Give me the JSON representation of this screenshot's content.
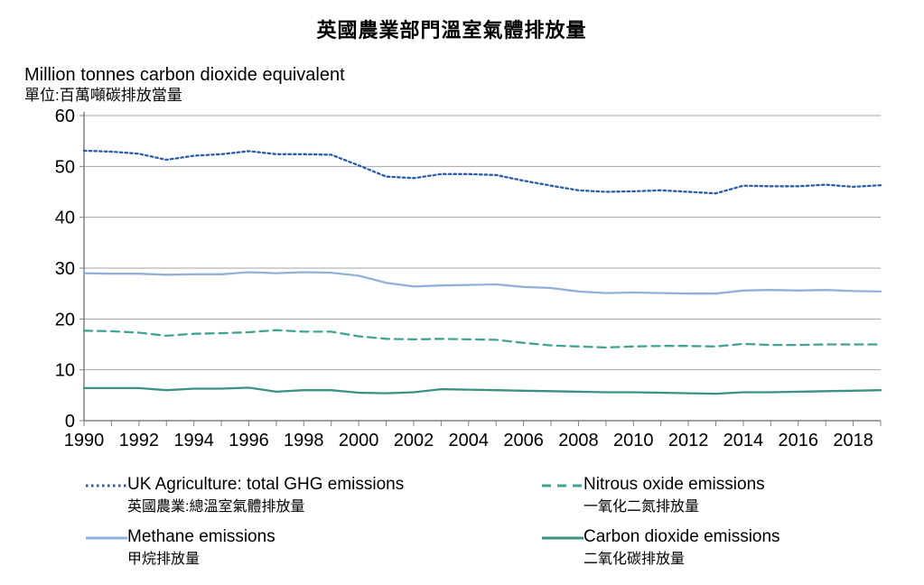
{
  "chart_data": {
    "type": "line",
    "title": "英國農業部門溫室氣體排放量",
    "unit_label_en": "Million tonnes carbon dioxide equivalent",
    "unit_label_zh": "單位:百萬噸碳排放當量",
    "x": [
      1990,
      1991,
      1992,
      1993,
      1994,
      1995,
      1996,
      1997,
      1998,
      1999,
      2000,
      2001,
      2002,
      2003,
      2004,
      2005,
      2006,
      2007,
      2008,
      2009,
      2010,
      2011,
      2012,
      2013,
      2014,
      2015,
      2016,
      2017,
      2018,
      2019
    ],
    "x_tick_labels": [
      "1990",
      "1992",
      "1994",
      "1996",
      "1998",
      "2000",
      "2002",
      "2004",
      "2006",
      "2008",
      "2010",
      "2012",
      "2014",
      "2016",
      "2018"
    ],
    "ylim": [
      0,
      60
    ],
    "yticks": [
      0,
      10,
      20,
      30,
      40,
      50,
      60
    ],
    "grid": "horizontal",
    "legend_position": "bottom",
    "axis_color": "#808080",
    "grid_color": "#a6a6a6",
    "series": [
      {
        "name": "UK Agriculture: total GHG emissions",
        "name_zh": "英國農業:總溫室氣體排放量",
        "style": "dotted",
        "color": "#2a5caa",
        "values": [
          53.1,
          52.9,
          52.5,
          51.3,
          52.1,
          52.4,
          53.0,
          52.4,
          52.4,
          52.3,
          50.2,
          48.0,
          47.7,
          48.5,
          48.5,
          48.3,
          47.2,
          46.2,
          45.3,
          45.0,
          45.1,
          45.3,
          45.0,
          44.7,
          46.2,
          46.1,
          46.1,
          46.4,
          46.0,
          46.3
        ]
      },
      {
        "name": "Nitrous oxide emissions",
        "name_zh": "一氧化二氮排放量",
        "style": "dashed",
        "color": "#41a393",
        "values": [
          17.7,
          17.6,
          17.3,
          16.7,
          17.1,
          17.2,
          17.4,
          17.8,
          17.5,
          17.5,
          16.6,
          16.1,
          16.0,
          16.1,
          16.0,
          15.9,
          15.3,
          14.8,
          14.6,
          14.4,
          14.6,
          14.7,
          14.7,
          14.6,
          15.1,
          14.9,
          14.9,
          15.0,
          15.0,
          15.0
        ]
      },
      {
        "name": "Methane emissions",
        "name_zh": "甲烷排放量",
        "style": "solid",
        "color": "#91b1d9",
        "values": [
          29.0,
          28.9,
          28.9,
          28.7,
          28.8,
          28.8,
          29.2,
          29.0,
          29.2,
          29.1,
          28.5,
          27.1,
          26.4,
          26.6,
          26.7,
          26.8,
          26.3,
          26.1,
          25.4,
          25.1,
          25.2,
          25.1,
          25.0,
          25.0,
          25.6,
          25.7,
          25.6,
          25.7,
          25.5,
          25.4
        ]
      },
      {
        "name": "Carbon dioxide emissions",
        "name_zh": "二氧化碳排放量",
        "style": "solid",
        "color": "#3d9183",
        "values": [
          6.4,
          6.4,
          6.4,
          6.0,
          6.3,
          6.3,
          6.5,
          5.7,
          6.0,
          6.0,
          5.5,
          5.4,
          5.6,
          6.2,
          6.1,
          6.0,
          5.9,
          5.8,
          5.7,
          5.6,
          5.6,
          5.5,
          5.4,
          5.3,
          5.6,
          5.6,
          5.7,
          5.8,
          5.9,
          6.0
        ]
      }
    ]
  }
}
